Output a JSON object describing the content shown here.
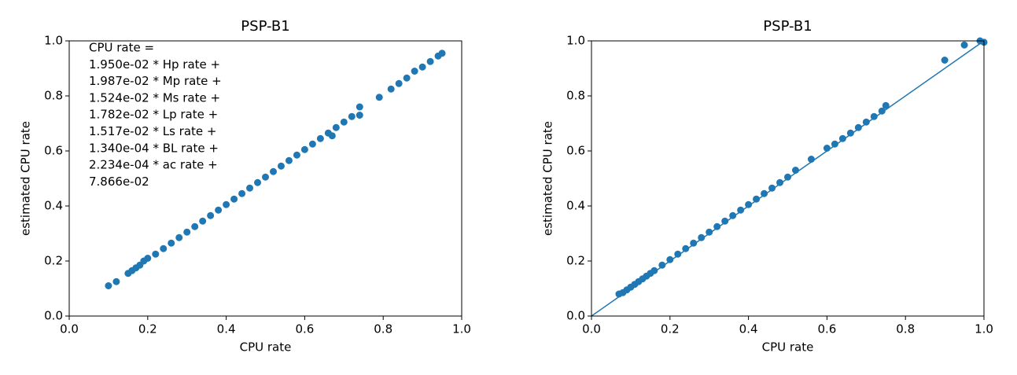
{
  "chart_data": [
    {
      "type": "scatter",
      "title": "PSP-B1",
      "xlabel": "CPU rate",
      "ylabel": "estimated CPU rate",
      "xlim": [
        0,
        1
      ],
      "ylim": [
        0,
        1
      ],
      "xticks": [
        {
          "value": 0,
          "label": "0.0"
        },
        0.2,
        0.4,
        0.6,
        0.8,
        {
          "value": 1,
          "label": "1.0"
        }
      ],
      "yticks": [
        {
          "value": 0,
          "label": "0.0"
        },
        0.2,
        0.4,
        0.6,
        0.8,
        {
          "value": 1,
          "label": "1.0"
        }
      ],
      "annotation": [
        "CPU rate =",
        "1.950e-02 * Hp rate +",
        "1.987e-02 * Mp rate +",
        "1.524e-02 * Ms rate +",
        "1.782e-02 * Lp rate +",
        "1.517e-02 * Ls rate +",
        "1.340e-04 * BL rate +",
        "2.234e-04 * ac rate +",
        "7.866e-02"
      ],
      "series": [
        {
          "type": "scatter",
          "color": "#1f77b4",
          "x": [
            0.1,
            0.12,
            0.15,
            0.16,
            0.17,
            0.18,
            0.19,
            0.2,
            0.22,
            0.24,
            0.26,
            0.28,
            0.3,
            0.32,
            0.34,
            0.36,
            0.38,
            0.4,
            0.42,
            0.44,
            0.46,
            0.48,
            0.5,
            0.52,
            0.54,
            0.56,
            0.58,
            0.6,
            0.62,
            0.64,
            0.66,
            0.67,
            0.68,
            0.7,
            0.72,
            0.74,
            0.74,
            0.79,
            0.82,
            0.84,
            0.86,
            0.88,
            0.9,
            0.92,
            0.94,
            0.95
          ],
          "values": [
            0.11,
            0.125,
            0.155,
            0.165,
            0.175,
            0.185,
            0.2,
            0.21,
            0.225,
            0.245,
            0.265,
            0.285,
            0.305,
            0.325,
            0.345,
            0.365,
            0.385,
            0.405,
            0.425,
            0.445,
            0.465,
            0.485,
            0.505,
            0.525,
            0.545,
            0.565,
            0.585,
            0.605,
            0.625,
            0.645,
            0.665,
            0.655,
            0.685,
            0.705,
            0.725,
            0.73,
            0.76,
            0.795,
            0.825,
            0.845,
            0.865,
            0.89,
            0.905,
            0.925,
            0.945,
            0.955
          ]
        }
      ]
    },
    {
      "type": "scatter",
      "title": "PSP-B1",
      "xlabel": "CPU rate",
      "ylabel": "estimated CPU rate",
      "xlim": [
        0,
        1
      ],
      "ylim": [
        0,
        1
      ],
      "xticks": [
        {
          "value": 0,
          "label": "0.0"
        },
        0.2,
        0.4,
        0.6,
        0.8,
        {
          "value": 1,
          "label": "1.0"
        }
      ],
      "yticks": [
        {
          "value": 0,
          "label": "0.0"
        },
        0.2,
        0.4,
        0.6,
        0.8,
        {
          "value": 1,
          "label": "1.0"
        }
      ],
      "series": [
        {
          "type": "line",
          "color": "#1f77b4",
          "x": [
            0,
            1
          ],
          "values": [
            0,
            1
          ]
        },
        {
          "type": "scatter",
          "color": "#1f77b4",
          "x": [
            0.07,
            0.08,
            0.09,
            0.1,
            0.11,
            0.12,
            0.13,
            0.14,
            0.15,
            0.16,
            0.18,
            0.2,
            0.22,
            0.24,
            0.26,
            0.28,
            0.3,
            0.32,
            0.34,
            0.36,
            0.38,
            0.4,
            0.42,
            0.44,
            0.46,
            0.48,
            0.5,
            0.52,
            0.56,
            0.6,
            0.62,
            0.64,
            0.66,
            0.68,
            0.7,
            0.72,
            0.74,
            0.75,
            0.9,
            0.95,
            0.99,
            1.0
          ],
          "values": [
            0.08,
            0.085,
            0.095,
            0.105,
            0.115,
            0.125,
            0.135,
            0.145,
            0.155,
            0.165,
            0.185,
            0.205,
            0.225,
            0.245,
            0.265,
            0.285,
            0.305,
            0.325,
            0.345,
            0.365,
            0.385,
            0.405,
            0.425,
            0.445,
            0.465,
            0.485,
            0.505,
            0.53,
            0.57,
            0.61,
            0.625,
            0.645,
            0.665,
            0.685,
            0.705,
            0.725,
            0.745,
            0.765,
            0.93,
            0.985,
            1.0,
            0.995
          ]
        }
      ]
    }
  ]
}
